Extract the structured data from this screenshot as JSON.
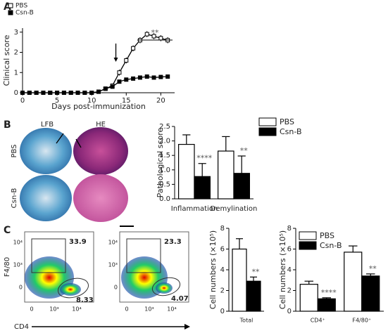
{
  "figure": {
    "panel_labels": [
      "A",
      "B",
      "C"
    ],
    "images": {
      "columns": [
        "LFB",
        "HE"
      ],
      "rows": [
        "PBS",
        "Csn-B"
      ]
    },
    "flow": {
      "y_label": "F4/80",
      "x_label": "CD4",
      "xticks": [
        "0",
        "10³",
        "10⁴"
      ],
      "yticks": [
        "10⁴",
        "10³",
        "0"
      ],
      "plots": [
        {
          "gates": [
            33.9,
            8.33
          ]
        },
        {
          "gates": [
            23.3,
            4.07
          ]
        }
      ]
    }
  },
  "chart_data": [
    {
      "type": "line",
      "x": [
        0,
        1,
        2,
        3,
        4,
        5,
        6,
        7,
        8,
        9,
        10,
        11,
        12,
        13,
        14,
        15,
        16,
        17,
        18,
        19,
        20,
        21
      ],
      "xlim": [
        0,
        22
      ],
      "xticks": [
        0,
        5,
        10,
        15,
        20
      ],
      "ylim": [
        0,
        3.2
      ],
      "yticks": [
        0,
        1,
        2,
        3
      ],
      "x_label": "Days post-immunization",
      "y_label": "Clinical score",
      "legend": "top-left",
      "series": [
        {
          "name": "PBS",
          "color": "#000000",
          "marker": "open",
          "values": [
            0,
            0,
            0,
            0,
            0,
            0,
            0,
            0,
            0,
            0,
            0,
            0.05,
            0.2,
            0.35,
            1.0,
            1.6,
            2.2,
            2.6,
            2.9,
            2.8,
            2.7,
            2.6
          ],
          "errors": [
            0,
            0,
            0,
            0,
            0,
            0,
            0,
            0,
            0,
            0,
            0,
            0.05,
            0.1,
            0.1,
            0.15,
            0.15,
            0.15,
            0.15,
            0.15,
            0.15,
            0.15,
            0.15
          ]
        },
        {
          "name": "Csn-B",
          "color": "#000000",
          "marker": "filled",
          "values": [
            0,
            0,
            0,
            0,
            0,
            0,
            0,
            0,
            0,
            0,
            0,
            0.05,
            0.2,
            0.3,
            0.55,
            0.65,
            0.7,
            0.75,
            0.8,
            0.75,
            0.78,
            0.8
          ],
          "errors": [
            0,
            0,
            0,
            0,
            0,
            0,
            0,
            0,
            0,
            0,
            0,
            0.03,
            0.05,
            0.05,
            0.05,
            0.05,
            0.05,
            0.05,
            0.05,
            0.05,
            0.05,
            0.05
          ]
        }
      ],
      "annotations": [
        "**"
      ]
    },
    {
      "type": "bar",
      "categories": [
        "Inflammation",
        "Demylination"
      ],
      "ylim": [
        0,
        2.5
      ],
      "yticks": [
        {
          "value": 0,
          "label": "0.0"
        },
        0.5,
        {
          "value": 1,
          "label": "1.0"
        },
        1.5,
        {
          "value": 2,
          "label": "2.0"
        },
        2.5
      ],
      "y_label": "Pathological score",
      "legend": "top-right",
      "series": [
        {
          "name": "PBS",
          "color": "#ffffff",
          "values": [
            1.88,
            1.65
          ],
          "errors": [
            0.33,
            0.5
          ]
        },
        {
          "name": "Csn-B",
          "color": "#000000",
          "values": [
            0.77,
            0.88
          ],
          "errors": [
            0.45,
            0.6
          ]
        }
      ],
      "annotations": [
        "****",
        "**"
      ]
    },
    {
      "type": "bar",
      "categories": [
        "Total"
      ],
      "ylim": [
        0,
        8
      ],
      "yticks": [
        0,
        2,
        4,
        6,
        8
      ],
      "y_label": "Cell numbers (×10⁵)",
      "series": [
        {
          "color": "#ffffff",
          "values": [
            6.0
          ],
          "errors": [
            1.0
          ]
        },
        {
          "color": "#000000",
          "values": [
            2.9
          ],
          "errors": [
            0.4
          ]
        }
      ],
      "annotations": [
        "**"
      ]
    },
    {
      "type": "bar",
      "categories": [
        "CD4⁺",
        "F4/80⁺"
      ],
      "ylim": [
        0,
        8
      ],
      "yticks": [
        0,
        2,
        4,
        6,
        8
      ],
      "y_label": "Cell numbers (×10⁵)",
      "legend": "top-left",
      "series": [
        {
          "name": "PBS",
          "color": "#ffffff",
          "values": [
            2.6,
            5.7
          ],
          "errors": [
            0.3,
            0.6
          ]
        },
        {
          "name": "Csn-B",
          "color": "#000000",
          "values": [
            1.2,
            3.4
          ],
          "errors": [
            0.1,
            0.2
          ]
        }
      ],
      "annotations": [
        "****",
        "**"
      ]
    }
  ]
}
